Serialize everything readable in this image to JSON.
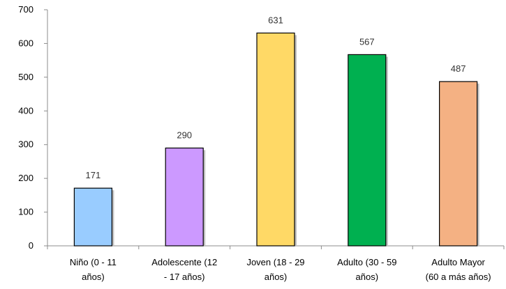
{
  "chart_data": {
    "type": "bar",
    "categories": [
      [
        "Niño (0 - 11",
        "años)"
      ],
      [
        "Adolescente (12",
        "- 17 años)"
      ],
      [
        "Joven (18 - 29",
        "años)"
      ],
      [
        "Adulto (30 - 59",
        "años)"
      ],
      [
        "Adulto Mayor",
        "(60 a más años)"
      ]
    ],
    "values": [
      171,
      290,
      631,
      567,
      487
    ],
    "bar_colors": [
      "#99ccff",
      "#cc99ff",
      "#ffd966",
      "#00b050",
      "#f4b183"
    ],
    "data_labels": [
      "171",
      "290",
      "631",
      "567",
      "487"
    ],
    "y_ticks": [
      0,
      100,
      200,
      300,
      400,
      500,
      600,
      700
    ],
    "ylim": [
      0,
      700
    ],
    "title": "",
    "xlabel": "",
    "ylabel": "",
    "grid": false,
    "legend": "none"
  }
}
